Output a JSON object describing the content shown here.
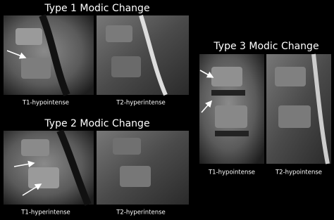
{
  "groups": [
    {
      "title": "Type 1 Modic Change",
      "labels": [
        "T1-hypointense",
        "T2-hyperintense"
      ]
    },
    {
      "title": "Type 2 Modic Change",
      "labels": [
        "T1-hyperintense",
        "T2-hyperintense"
      ]
    },
    {
      "title": "Type 3 Modic Change",
      "labels": [
        "T1-hypointense",
        "T2-hypointense"
      ]
    }
  ]
}
